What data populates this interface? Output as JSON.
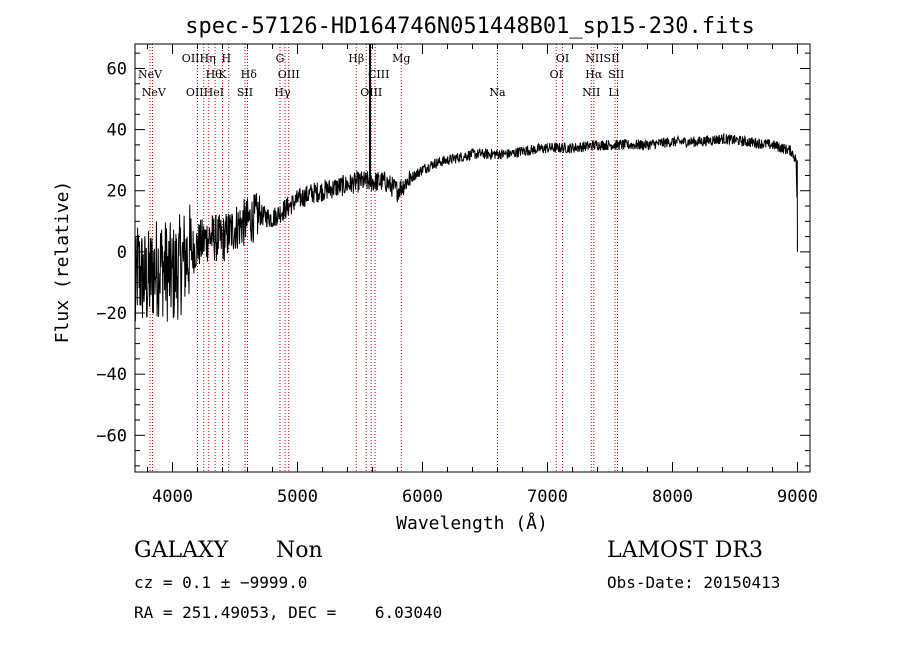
{
  "chart_data": {
    "type": "line",
    "title": "spec-57126-HD164746N051448B01_sp15-230.fits",
    "xlabel": "Wavelength (Å)",
    "ylabel": "Flux (relative)",
    "xlim": [
      3700,
      9100
    ],
    "ylim": [
      -72,
      68
    ],
    "xticks": [
      4000,
      5000,
      6000,
      7000,
      8000,
      9000
    ],
    "xtick_labels": [
      "4000",
      "5000",
      "6000",
      "7000",
      "8000",
      "9000"
    ],
    "yticks": [
      -60,
      -40,
      -20,
      0,
      20,
      40,
      60
    ],
    "ytick_labels": [
      "−60",
      "−40",
      "−20",
      "0",
      "20",
      "40",
      "60"
    ],
    "series": [
      {
        "name": "flux",
        "anchors": [
          [
            3700,
            -18
          ],
          [
            3720,
            -5
          ],
          [
            3750,
            -8
          ],
          [
            3800,
            -10
          ],
          [
            3850,
            -6
          ],
          [
            3900,
            -4
          ],
          [
            4000,
            -8
          ],
          [
            4100,
            -2
          ],
          [
            4200,
            2
          ],
          [
            4300,
            5
          ],
          [
            4400,
            4
          ],
          [
            4500,
            8
          ],
          [
            4600,
            10
          ],
          [
            4700,
            12
          ],
          [
            4800,
            11
          ],
          [
            4900,
            14
          ],
          [
            5000,
            17
          ],
          [
            5100,
            19
          ],
          [
            5200,
            20
          ],
          [
            5300,
            21
          ],
          [
            5400,
            22
          ],
          [
            5500,
            23
          ],
          [
            5600,
            23
          ],
          [
            5700,
            23
          ],
          [
            5800,
            20
          ],
          [
            5900,
            24
          ],
          [
            6000,
            27
          ],
          [
            6100,
            29
          ],
          [
            6200,
            30
          ],
          [
            6300,
            31
          ],
          [
            6400,
            32
          ],
          [
            6500,
            32
          ],
          [
            6600,
            32
          ],
          [
            6700,
            32
          ],
          [
            6800,
            33
          ],
          [
            7000,
            34
          ],
          [
            7200,
            34
          ],
          [
            7400,
            35
          ],
          [
            7600,
            35
          ],
          [
            7800,
            35
          ],
          [
            8000,
            36
          ],
          [
            8200,
            36
          ],
          [
            8400,
            37
          ],
          [
            8600,
            36
          ],
          [
            8800,
            35
          ],
          [
            8950,
            33
          ],
          [
            8990,
            30
          ],
          [
            9000,
            4
          ]
        ]
      }
    ],
    "line_markers": [
      {
        "label": "NeV",
        "wave": 3820,
        "row": 1
      },
      {
        "label": "NeV",
        "wave": 3850,
        "row": 2
      },
      {
        "label": "OIIHη",
        "wave": 4210,
        "row": 0
      },
      {
        "label": "Hθ",
        "wave": 4330,
        "row": 1
      },
      {
        "label": "OIIHeI",
        "wave": 4260,
        "row": 2
      },
      {
        "label": "H",
        "wave": 4430,
        "row": 0
      },
      {
        "label": "K",
        "wave": 4400,
        "row": 1
      },
      {
        "label": "Hδ",
        "wave": 4610,
        "row": 1
      },
      {
        "label": "SII",
        "wave": 4580,
        "row": 2
      },
      {
        "label": "G",
        "wave": 4860,
        "row": 0
      },
      {
        "label": "OIII",
        "wave": 4930,
        "row": 1
      },
      {
        "label": "Hγ",
        "wave": 4880,
        "row": 2
      },
      {
        "label": "Hβ",
        "wave": 5470,
        "row": 0
      },
      {
        "label": "Mg",
        "wave": 5830,
        "row": 0
      },
      {
        "label": "CIII",
        "wave": 5650,
        "row": 1
      },
      {
        "label": "OIII",
        "wave": 5590,
        "row": 2
      },
      {
        "label": "Na",
        "wave": 6600,
        "row": 2
      },
      {
        "label": "OI",
        "wave": 7120,
        "row": 0
      },
      {
        "label": "OI",
        "wave": 7070,
        "row": 1
      },
      {
        "label": "NIISII",
        "wave": 7440,
        "row": 0
      },
      {
        "label": "Hα",
        "wave": 7370,
        "row": 1
      },
      {
        "label": "SII",
        "wave": 7550,
        "row": 1
      },
      {
        "label": "NII",
        "wave": 7350,
        "row": 2
      },
      {
        "label": "Li",
        "wave": 7530,
        "row": 2
      }
    ],
    "line_wavelengths": [
      3820,
      3840,
      4200,
      4250,
      4290,
      4340,
      4400,
      4450,
      4580,
      4600,
      4860,
      4900,
      4930,
      5470,
      5550,
      5590,
      5620,
      5830,
      6600,
      7070,
      7120,
      7350,
      7370,
      7540,
      7560
    ],
    "marker_line_color": "#cc0000",
    "spectrum_color": "#000000"
  },
  "info": {
    "class_type": "GALAXY",
    "subclass": "Non",
    "survey": "LAMOST DR3",
    "cz": "cz = 0.1 ± −9999.0",
    "obs_date": "Obs-Date: 20150413",
    "radec": "RA = 251.49053, DEC =    6.03040"
  }
}
